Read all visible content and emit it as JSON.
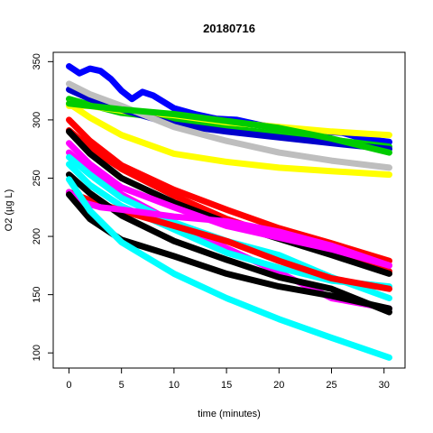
{
  "chart_data": {
    "type": "line",
    "title": "20180716",
    "xlabel": "time (minutes)",
    "ylabel": "O2 (µg L)",
    "xlim": [
      -1.5,
      32
    ],
    "ylim": [
      87,
      358
    ],
    "x_ticks": [
      0,
      5,
      10,
      15,
      20,
      25,
      30
    ],
    "y_ticks": [
      100,
      150,
      200,
      250,
      300,
      350
    ],
    "grid": false,
    "series": [
      {
        "color": "#0000ff",
        "x": [
          0,
          1,
          2,
          3,
          4,
          5,
          6,
          7,
          8,
          10,
          12,
          14,
          16,
          18,
          20,
          22,
          24,
          26,
          28,
          30.5
        ],
        "y": [
          346,
          340,
          344,
          342,
          335,
          325,
          318,
          324,
          321,
          310,
          305,
          301,
          300,
          296,
          293,
          292,
          290,
          289,
          284,
          281
        ]
      },
      {
        "color": "#00cc00",
        "x": [
          0,
          2,
          5,
          10,
          15,
          20,
          25,
          30.5
        ],
        "y": [
          318,
          313,
          306,
          301,
          293,
          288,
          283,
          277
        ]
      },
      {
        "color": "#ffff00",
        "x": [
          0,
          2,
          5,
          10,
          15,
          20,
          25,
          30.5
        ],
        "y": [
          312,
          312,
          308,
          304,
          298,
          294,
          290,
          287
        ]
      },
      {
        "color": "#0000cc",
        "x": [
          0,
          2,
          5,
          10,
          15,
          20,
          25,
          30.5
        ],
        "y": [
          326,
          318,
          309,
          296,
          290,
          285,
          280,
          275
        ]
      },
      {
        "color": "#bebebe",
        "x": [
          0,
          2,
          5,
          10,
          15,
          20,
          25,
          30.5
        ],
        "y": [
          331,
          322,
          312,
          294,
          282,
          272,
          265,
          259
        ]
      },
      {
        "color": "#ffff00",
        "x": [
          0,
          2,
          5,
          10,
          15,
          20,
          25,
          30.5
        ],
        "y": [
          314,
          302,
          287,
          271,
          264,
          259,
          256,
          253
        ]
      },
      {
        "color": "#00cc00",
        "x": [
          0,
          5,
          10,
          15,
          20,
          25,
          30.5
        ],
        "y": [
          314,
          309,
          305,
          299,
          293,
          284,
          272
        ]
      },
      {
        "color": "#ff0000",
        "x": [
          0,
          2,
          5,
          10,
          15,
          20,
          25,
          30.5
        ],
        "y": [
          300,
          282,
          261,
          240,
          223,
          207,
          194,
          179
        ]
      },
      {
        "color": "#ff0000",
        "x": [
          0,
          2,
          5,
          10,
          15,
          20,
          25,
          30.5
        ],
        "y": [
          291,
          276,
          258,
          235,
          215,
          200,
          186,
          170
        ]
      },
      {
        "color": "#000000",
        "x": [
          0,
          2,
          5,
          10,
          15,
          20,
          25,
          30.5
        ],
        "y": [
          290,
          271,
          250,
          229,
          212,
          198,
          184,
          168
        ]
      },
      {
        "color": "#ff00ff",
        "x": [
          0,
          2,
          5,
          10,
          15,
          20,
          25,
          30.5
        ],
        "y": [
          280,
          262,
          242,
          225,
          209,
          199,
          189,
          175
        ]
      },
      {
        "color": "#ff00ff",
        "x": [
          0,
          2,
          5,
          10,
          15,
          20,
          25,
          30.5
        ],
        "y": [
          272,
          256,
          236,
          212,
          190,
          169,
          147,
          138
        ]
      },
      {
        "color": "#00ffff",
        "x": [
          0,
          2,
          5,
          10,
          15,
          20,
          25,
          30.5
        ],
        "y": [
          268,
          253,
          233,
          212,
          196,
          184,
          165,
          147
        ]
      },
      {
        "color": "#00ffff",
        "x": [
          0,
          2,
          5,
          10,
          15,
          20,
          25,
          30.5
        ],
        "y": [
          262,
          244,
          226,
          206,
          186,
          173,
          162,
          157
        ]
      },
      {
        "color": "#ff0000",
        "x": [
          0,
          2,
          5,
          10,
          15,
          20,
          25,
          30.5
        ],
        "y": [
          238,
          231,
          222,
          209,
          196,
          179,
          164,
          155
        ]
      },
      {
        "color": "#000000",
        "x": [
          0,
          2,
          5,
          10,
          15,
          20,
          25,
          30.5
        ],
        "y": [
          253,
          237,
          218,
          196,
          180,
          165,
          155,
          135
        ]
      },
      {
        "color": "#ff00ff",
        "x": [
          0,
          1,
          3,
          5,
          10,
          15,
          20,
          25,
          30.5
        ],
        "y": [
          238,
          230,
          225,
          223,
          217,
          213,
          204,
          192,
          175
        ]
      },
      {
        "color": "#000000",
        "x": [
          0,
          2,
          5,
          10,
          15,
          20,
          25,
          30.5
        ],
        "y": [
          236,
          215,
          197,
          183,
          168,
          157,
          149,
          138
        ]
      },
      {
        "color": "#00ffff",
        "x": [
          0,
          2,
          5,
          10,
          15,
          20,
          25,
          30.5
        ],
        "y": [
          249,
          222,
          195,
          168,
          147,
          129,
          113,
          96
        ]
      }
    ]
  }
}
